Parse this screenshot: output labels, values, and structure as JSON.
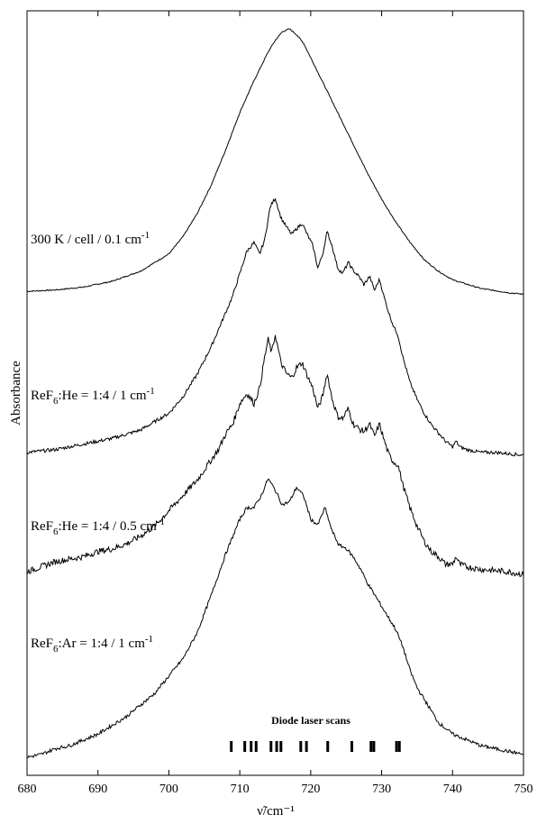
{
  "chart_data": {
    "type": "line",
    "xlabel": "ν̃/cm⁻¹",
    "ylabel": "Absorbance",
    "xlim": [
      680,
      750
    ],
    "xticks": [
      680,
      690,
      700,
      710,
      720,
      730,
      740,
      750
    ],
    "grid": false,
    "legend": "none",
    "series": [
      {
        "name": "300 K / cell / 0.1 cm-1",
        "label_parts": [
          "300 K / cell   / 0.1 cm",
          "-1"
        ],
        "offset": 3,
        "x": [
          680,
          684,
          688,
          692,
          696,
          700,
          702,
          704,
          706,
          708,
          710,
          712,
          714,
          715,
          716,
          717,
          718,
          719,
          720,
          722,
          724,
          726,
          728,
          730,
          732,
          734,
          736,
          738,
          740,
          744,
          748,
          750
        ],
        "y": [
          0.09,
          0.095,
          0.105,
          0.125,
          0.16,
          0.22,
          0.28,
          0.36,
          0.46,
          0.58,
          0.71,
          0.82,
          0.92,
          0.96,
          0.99,
          1.0,
          0.98,
          0.95,
          0.9,
          0.8,
          0.7,
          0.6,
          0.5,
          0.41,
          0.33,
          0.26,
          0.2,
          0.16,
          0.13,
          0.1,
          0.085,
          0.08
        ]
      },
      {
        "name": "ReF6:He = 1:4 / 1 cm-1",
        "label_parts": [
          "ReF",
          "6",
          ":He = 1:4 / 1 cm",
          "-1"
        ],
        "offset": 2,
        "x": [
          680,
          684,
          688,
          692,
          696,
          700,
          702,
          704,
          706,
          707,
          708,
          709,
          710,
          711,
          712,
          712.8,
          713.5,
          714.3,
          715,
          715.8,
          716.5,
          717.3,
          718,
          718.8,
          719.5,
          720.3,
          721,
          721.7,
          722.3,
          723,
          723.8,
          724.5,
          725.3,
          726,
          726.8,
          727.5,
          728.3,
          729,
          729.7,
          730.3,
          731,
          731.7,
          732.3,
          733,
          734,
          735,
          736,
          737,
          738,
          739,
          740,
          740.5,
          741,
          742,
          744,
          746,
          748,
          750
        ],
        "y": [
          0.02,
          0.03,
          0.05,
          0.07,
          0.1,
          0.16,
          0.22,
          0.3,
          0.4,
          0.46,
          0.52,
          0.58,
          0.66,
          0.74,
          0.77,
          0.73,
          0.78,
          0.9,
          0.93,
          0.86,
          0.83,
          0.8,
          0.82,
          0.84,
          0.8,
          0.76,
          0.68,
          0.73,
          0.81,
          0.76,
          0.68,
          0.66,
          0.7,
          0.67,
          0.65,
          0.62,
          0.65,
          0.6,
          0.64,
          0.58,
          0.52,
          0.47,
          0.44,
          0.36,
          0.27,
          0.21,
          0.16,
          0.12,
          0.09,
          0.06,
          0.04,
          0.06,
          0.04,
          0.03,
          0.02,
          0.02,
          0.015,
          0.01
        ]
      },
      {
        "name": "ReF6:He = 1:4 / 0.5 cm-1",
        "label_parts": [
          "ReF",
          "6",
          ":He = 1:4 / 0.5 cm",
          "-1"
        ],
        "offset": 1,
        "x": [
          680,
          682,
          684,
          686,
          688,
          690,
          692,
          694,
          696,
          698,
          700,
          702,
          704,
          706,
          707,
          708,
          709,
          710,
          711,
          712,
          712.8,
          713.5,
          714,
          714.5,
          715,
          715.8,
          716.5,
          717.3,
          718,
          718.8,
          719.5,
          720.3,
          721,
          721.7,
          722.3,
          723,
          723.8,
          724.5,
          725.3,
          726,
          726.8,
          727.5,
          728.3,
          729,
          729.7,
          730.3,
          731,
          731.7,
          732.3,
          733,
          734,
          735,
          736,
          737,
          738,
          739,
          740,
          740.5,
          741,
          742,
          744,
          746,
          748,
          750
        ],
        "y": [
          0.02,
          0.04,
          0.06,
          0.07,
          0.08,
          0.1,
          0.11,
          0.13,
          0.16,
          0.2,
          0.26,
          0.32,
          0.38,
          0.46,
          0.5,
          0.56,
          0.6,
          0.68,
          0.72,
          0.68,
          0.74,
          0.86,
          0.93,
          0.88,
          0.95,
          0.84,
          0.8,
          0.78,
          0.82,
          0.84,
          0.79,
          0.74,
          0.66,
          0.71,
          0.8,
          0.7,
          0.63,
          0.62,
          0.66,
          0.6,
          0.58,
          0.57,
          0.6,
          0.55,
          0.6,
          0.54,
          0.48,
          0.45,
          0.44,
          0.36,
          0.27,
          0.2,
          0.14,
          0.1,
          0.08,
          0.05,
          0.05,
          0.08,
          0.05,
          0.04,
          0.03,
          0.025,
          0.02,
          0.01
        ]
      },
      {
        "name": "ReF6:Ar = 1:4 / 1 cm-1",
        "label_parts": [
          "ReF",
          "6",
          ":Ar = 1:4 / 1 cm",
          "-1"
        ],
        "offset": 0,
        "x": [
          680,
          682,
          684,
          686,
          688,
          690,
          692,
          694,
          696,
          698,
          700,
          702,
          704,
          706,
          708,
          710,
          711,
          712,
          713,
          714,
          715,
          716,
          717,
          718,
          719,
          720,
          721,
          722,
          723,
          724,
          725,
          726,
          727,
          728,
          729,
          730,
          731,
          732,
          733,
          734,
          735,
          736,
          737,
          738,
          740,
          742,
          744,
          746,
          748,
          750
        ],
        "y": [
          0.0,
          0.01,
          0.03,
          0.04,
          0.06,
          0.08,
          0.11,
          0.14,
          0.18,
          0.22,
          0.28,
          0.34,
          0.43,
          0.56,
          0.7,
          0.82,
          0.86,
          0.86,
          0.9,
          0.96,
          0.92,
          0.87,
          0.88,
          0.93,
          0.9,
          0.82,
          0.8,
          0.86,
          0.78,
          0.73,
          0.72,
          0.69,
          0.65,
          0.6,
          0.56,
          0.52,
          0.48,
          0.44,
          0.38,
          0.3,
          0.24,
          0.2,
          0.16,
          0.12,
          0.08,
          0.06,
          0.04,
          0.03,
          0.02,
          0.01
        ]
      }
    ],
    "annotation": {
      "text": "Diode laser scans",
      "scan_positions": [
        708.8,
        710.7,
        711.6,
        712.3,
        714.4,
        715.2,
        715.8,
        718.6,
        719.4,
        722.4,
        725.8,
        728.5,
        728.9,
        732.1,
        732.5
      ]
    }
  }
}
